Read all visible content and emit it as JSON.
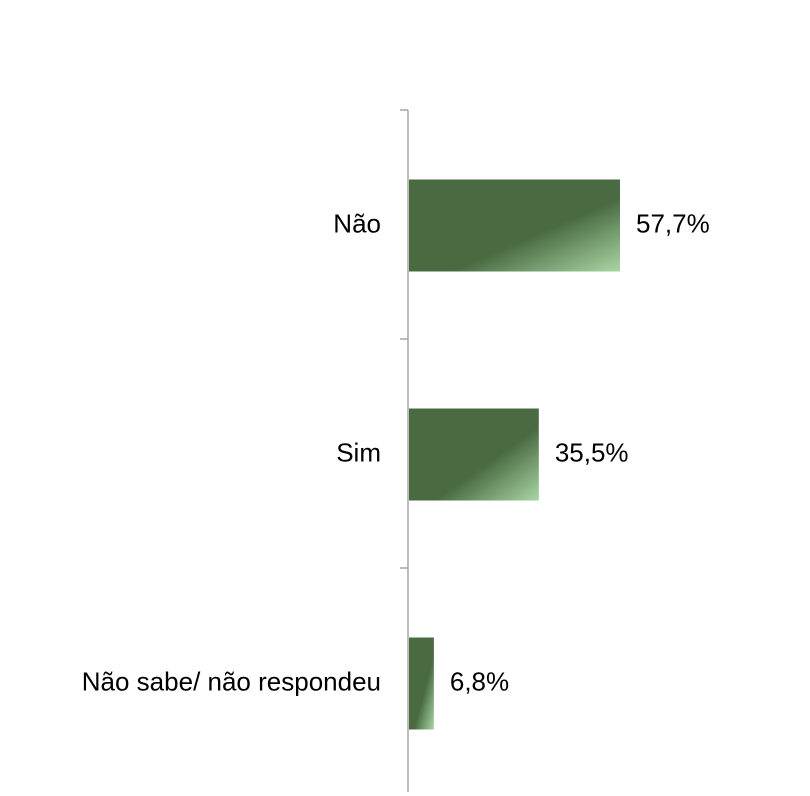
{
  "chart_data": {
    "type": "bar",
    "orientation": "horizontal",
    "title": "",
    "xlabel": "",
    "ylabel": "",
    "categories": [
      "Não",
      "Sim",
      "Não sabe/ não respondeu"
    ],
    "values": [
      57.7,
      35.5,
      6.8
    ],
    "value_labels": [
      "57,7%",
      "35,5%",
      "6,8%"
    ],
    "unit": "%",
    "xlim": [
      0,
      100
    ],
    "grid": false,
    "legend": "none",
    "colors": {
      "bar_dark": "#4a6b42",
      "bar_light": "#a9d6a4",
      "axis": "#a6a6a6",
      "text": "#000000"
    }
  }
}
